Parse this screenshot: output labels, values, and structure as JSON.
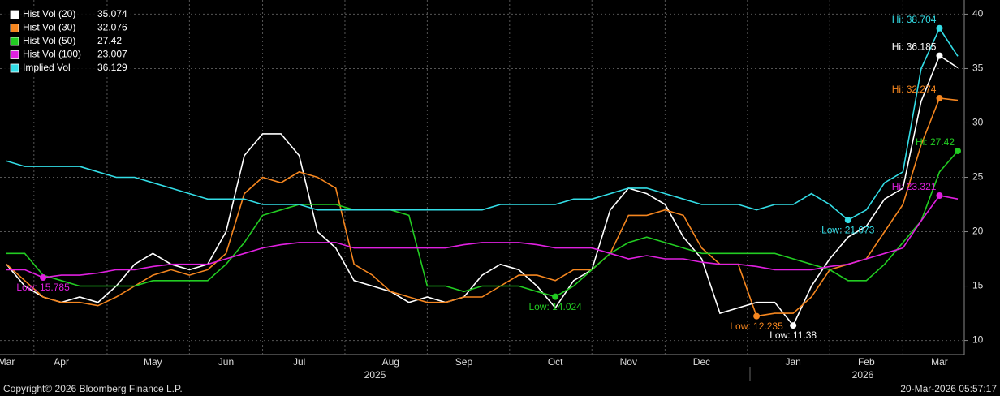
{
  "chart_data": {
    "type": "line",
    "categories": [
      "Mar",
      null,
      null,
      "Apr",
      null,
      null,
      null,
      null,
      "May",
      null,
      null,
      null,
      "Jun",
      null,
      null,
      null,
      "Jul",
      null,
      null,
      null,
      null,
      "Aug",
      null,
      null,
      null,
      "Sep",
      null,
      null,
      null,
      null,
      "Oct",
      null,
      null,
      null,
      "Nov",
      null,
      null,
      null,
      "Dec",
      null,
      null,
      null,
      null,
      "Jan",
      null,
      null,
      null,
      "Feb",
      null,
      null,
      null,
      "Mar",
      null
    ],
    "year_labels": [
      "2025",
      "2026"
    ],
    "series": [
      {
        "name": "Hist Vol (20)",
        "color": "#ffffff",
        "values": [
          17,
          15,
          14,
          13.5,
          14,
          13.5,
          15,
          17,
          18,
          17,
          16.5,
          17,
          20,
          27,
          29,
          29,
          27,
          20,
          18.5,
          15.5,
          15,
          14.5,
          13.5,
          14,
          13.5,
          14,
          16,
          17,
          16.5,
          15,
          13,
          15.5,
          16.5,
          22,
          24,
          23.5,
          22.5,
          19.5,
          17.5,
          12.5,
          13,
          13.5,
          13.5,
          11.38,
          15,
          17.5,
          19.5,
          20.5,
          23,
          24,
          32,
          36.185,
          35.074
        ],
        "high": {
          "value": 36.185,
          "label": "Hi: 36.185"
        },
        "low": {
          "value": 11.38,
          "label": "Low: 11.38"
        }
      },
      {
        "name": "Hist Vol (30)",
        "color": "#f5861f",
        "values": [
          17,
          15.5,
          14,
          13.5,
          13.5,
          13.2,
          14,
          15,
          16,
          16.5,
          16,
          16.5,
          18,
          23.5,
          25,
          24.5,
          25.5,
          25,
          24,
          17,
          16,
          14.5,
          14,
          13.5,
          13.5,
          14,
          14,
          15,
          16,
          16,
          15.5,
          16.5,
          16.5,
          18,
          21.5,
          21.5,
          22,
          21.5,
          18.5,
          17,
          17,
          12.235,
          12.5,
          12.5,
          14,
          16.5,
          17,
          17.5,
          20,
          22.5,
          28,
          32.274,
          32.076
        ],
        "high": {
          "value": 32.274,
          "label": "Hi: 32.274"
        },
        "low": {
          "value": 12.235,
          "label": "Low: 12.235"
        }
      },
      {
        "name": "Hist Vol (50)",
        "color": "#22cc22",
        "values": [
          18,
          18,
          16,
          15.5,
          15,
          15,
          15,
          15,
          15.5,
          15.5,
          15.5,
          15.5,
          17,
          19,
          21.5,
          22,
          22.5,
          22.5,
          22.5,
          22,
          22,
          22,
          21.5,
          15,
          15,
          14.5,
          15,
          15,
          15,
          14.5,
          14.024,
          15,
          16.5,
          18,
          19,
          19.5,
          19,
          18.5,
          18,
          18,
          18,
          18,
          18,
          17.5,
          17,
          16.5,
          15.5,
          15.5,
          17,
          19,
          21,
          25.5,
          27.42
        ],
        "high": {
          "value": 27.42,
          "label": "Hi: 27.42"
        },
        "low": {
          "value": 14.024,
          "label": "Low: 14.024"
        }
      },
      {
        "name": "Hist Vol (100)",
        "color": "#e020e0",
        "values": [
          16.5,
          16.5,
          15.785,
          16,
          16,
          16.2,
          16.5,
          16.5,
          16.8,
          17,
          17,
          17,
          17.5,
          18,
          18.5,
          18.8,
          19,
          19,
          19,
          18.5,
          18.5,
          18.5,
          18.5,
          18.5,
          18.5,
          18.8,
          19,
          19,
          19,
          18.8,
          18.5,
          18.5,
          18.5,
          18,
          17.5,
          17.8,
          17.5,
          17.5,
          17.2,
          17,
          17,
          16.8,
          16.5,
          16.5,
          16.5,
          16.8,
          17,
          17.5,
          18,
          18.5,
          21,
          23.321,
          23.007
        ],
        "high": {
          "value": 23.321,
          "label": "Hi: 23.321"
        },
        "low": {
          "value": 15.785,
          "label": "Low: 15.785"
        }
      },
      {
        "name": "Implied Vol",
        "color": "#33dde6",
        "values": [
          26.5,
          26,
          26,
          26,
          26,
          25.5,
          25,
          25,
          24.5,
          24,
          23.5,
          23,
          23,
          23,
          22.5,
          22.5,
          22.5,
          22,
          22,
          22,
          22,
          22,
          22,
          22,
          22,
          22,
          22,
          22.5,
          22.5,
          22.5,
          22.5,
          23,
          23,
          23.5,
          24,
          24,
          23.5,
          23,
          22.5,
          22.5,
          22.5,
          22,
          22.5,
          22.5,
          23.5,
          22.5,
          21.073,
          22,
          24.5,
          25.5,
          35,
          38.704,
          36.129
        ],
        "high": {
          "value": 38.704,
          "label": "Hi: 38.704"
        },
        "low": {
          "value": 21.073,
          "label": "Low: 21.073"
        }
      }
    ],
    "ylim": [
      8.7,
      41.3
    ],
    "yticks": [
      10,
      15,
      20,
      25,
      30,
      35,
      40
    ],
    "grid": true,
    "copyright": "Copyright© 2026 Bloomberg Finance L.P.",
    "timestamp": "20-Mar-2026 05:57:17"
  }
}
